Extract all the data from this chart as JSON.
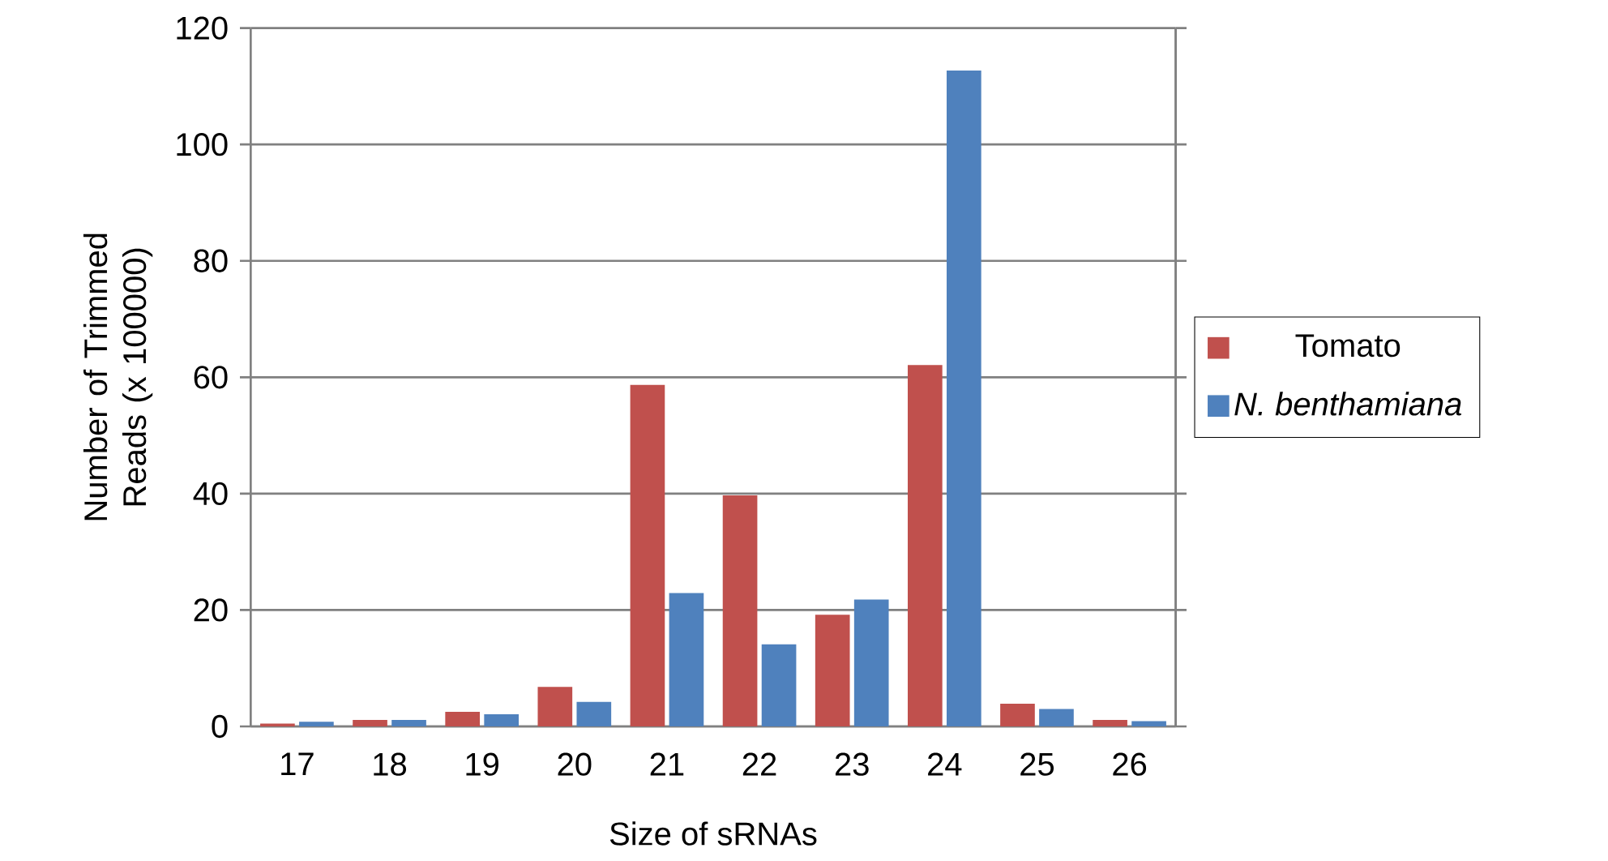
{
  "chart_data": {
    "type": "bar",
    "xlabel": "Size of sRNAs",
    "ylabel": "Number of Trimmed Reads (x 100000)",
    "categories": [
      "17",
      "18",
      "19",
      "20",
      "21",
      "22",
      "23",
      "24",
      "25",
      "26"
    ],
    "series": [
      {
        "name": "Tomato",
        "color": "#c0504d",
        "values": [
          0.5,
          1.1,
          2.5,
          6.8,
          58.7,
          39.7,
          19.2,
          62.1,
          3.9,
          1.1
        ]
      },
      {
        "name": "*N. benthamiana*",
        "color": "#4f81bd",
        "values": [
          0.8,
          1.1,
          2.1,
          4.2,
          22.9,
          14.1,
          21.8,
          112.7,
          3.0,
          0.9
        ]
      }
    ],
    "ylim": [
      0,
      120
    ],
    "yticks": [
      0,
      20,
      40,
      60,
      80,
      100,
      120
    ],
    "grid": "y",
    "legend": "right"
  }
}
